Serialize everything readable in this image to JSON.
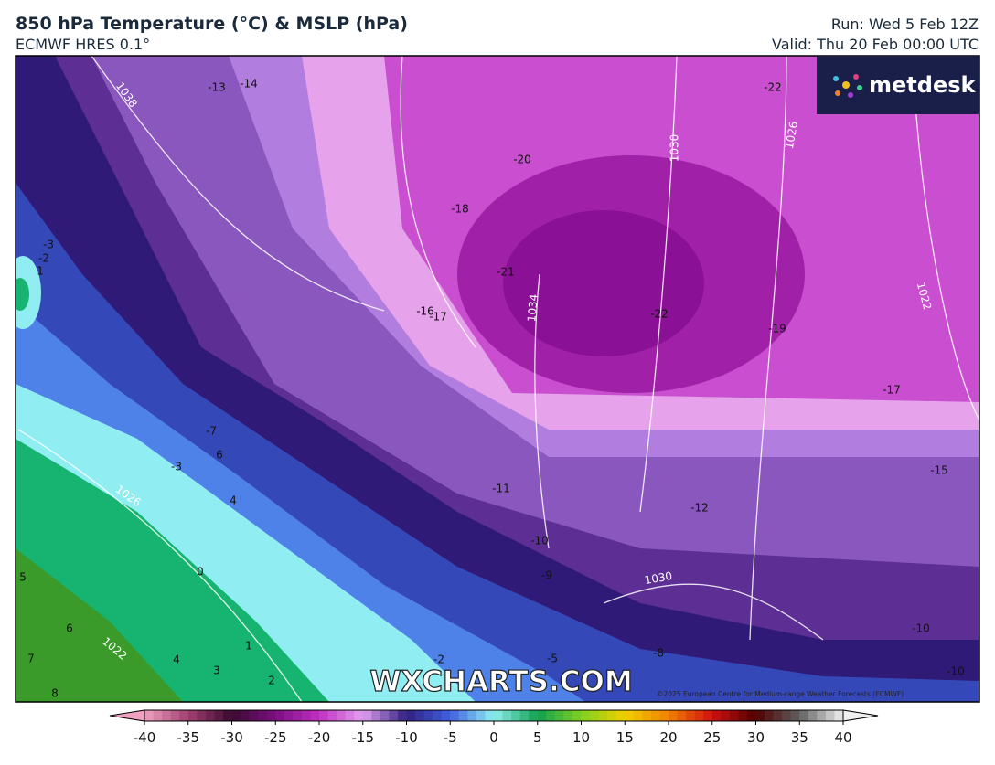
{
  "header": {
    "title": "850 hPa Temperature (°C) & MSLP (hPa)",
    "subtitle": "ECMWF HRES 0.1°",
    "run": "Run: Wed 5 Feb 12Z",
    "valid": "Valid: Thu 20 Feb 00:00 UTC"
  },
  "logo": "metdesk",
  "watermark": "WXCHARTS.COM",
  "copyright": "©2025 European Centre for Medium-range Weather Forecasts (ECMWF)",
  "map_labels": [
    "-13",
    "-14",
    "1038",
    "-22",
    "1030",
    "1026",
    "-20",
    "-18",
    "-21",
    "-16",
    "-17",
    "1034",
    "-22",
    "-19",
    "1022",
    "-17",
    "-15",
    "-12",
    "-11",
    "-10",
    "-9",
    "1030",
    "-10",
    "-8",
    "-5",
    "-2",
    "-3",
    "-2",
    "1",
    "-7",
    "6",
    "-3",
    "4",
    "1026",
    "0",
    "5",
    "6",
    "7",
    "8",
    "1022",
    "4",
    "3",
    "1",
    "2",
    "-10"
  ],
  "colorbar": {
    "lim": [
      -40,
      40
    ],
    "ticks": [
      -40,
      -35,
      -30,
      -25,
      -20,
      -15,
      -10,
      -5,
      0,
      5,
      10,
      15,
      20,
      25,
      30,
      35,
      40
    ],
    "colors": [
      "#f0a0c0",
      "#a04070",
      "#3a0a30",
      "#7a1080",
      "#c030c0",
      "#e0a0f0",
      "#302080",
      "#4060e0",
      "#90f0f0",
      "#10a050",
      "#80d020",
      "#f0d000",
      "#f08000",
      "#d01010",
      "#500000",
      "#606060",
      "#f0f0f0"
    ]
  }
}
